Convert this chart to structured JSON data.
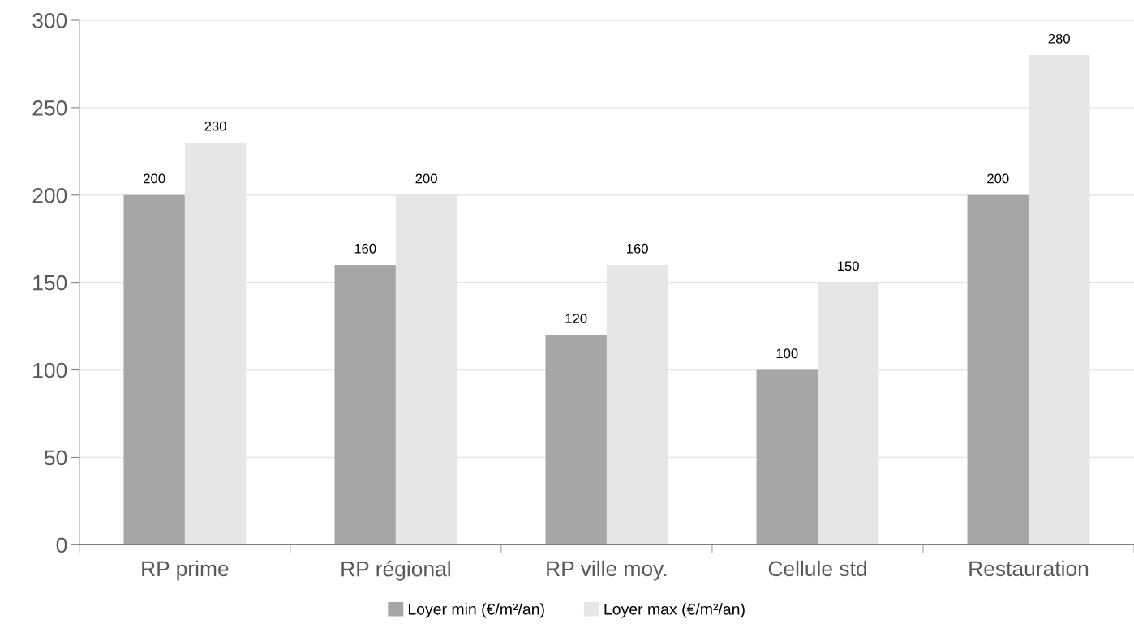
{
  "chart_data": {
    "type": "bar",
    "categories": [
      "RP prime",
      "RP régional",
      "RP ville moy.",
      "Cellule std",
      "Restauration"
    ],
    "series": [
      {
        "name": "Loyer min (€/m²/an)",
        "color": "#a6a6a6",
        "values": [
          200,
          160,
          120,
          100,
          200
        ]
      },
      {
        "name": "Loyer max (€/m²/an)",
        "color": "#e6e6e6",
        "values": [
          230,
          200,
          160,
          150,
          280
        ]
      }
    ],
    "ylim": [
      0,
      300
    ],
    "yticks": [
      0,
      50,
      100,
      150,
      200,
      250,
      300
    ],
    "grid": "y",
    "legend": "bottom",
    "data_labels": true
  }
}
